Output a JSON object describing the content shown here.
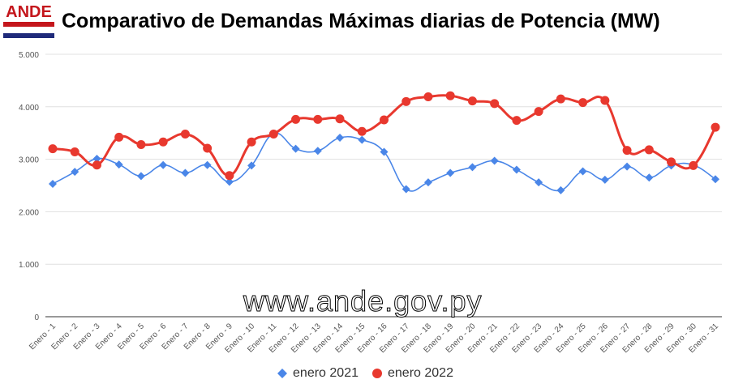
{
  "header": {
    "logo_text": "ANDE",
    "title": "Comparativo de Demandas Máximas diarias de Potencia (MW)"
  },
  "watermark": "www.ande.gov.py",
  "colors": {
    "logo_red": "#c4161c",
    "logo_blue": "#1f2a7a",
    "series_2021": "#4a86e8",
    "series_2022": "#e8382e",
    "grid": "#e0e0e0",
    "axis_text": "#555555"
  },
  "chart_data": {
    "type": "line",
    "categories": [
      "Enero - 1",
      "Enero - 2",
      "Enero - 3",
      "Enero - 4",
      "Enero - 5",
      "Enero - 6",
      "Enero - 7",
      "Enero - 8",
      "Enero - 9",
      "Enero - 10",
      "Enero - 11",
      "Enero - 12",
      "Enero - 13",
      "Enero - 14",
      "Enero - 15",
      "Enero - 16",
      "Enero - 17",
      "Enero - 18",
      "Enero - 19",
      "Enero - 20",
      "Enero - 21",
      "Enero - 22",
      "Enero - 23",
      "Enero - 24",
      "Enero - 25",
      "Enero - 26",
      "Enero - 27",
      "Enero - 28",
      "Enero - 29",
      "Enero - 30",
      "Enero - 31"
    ],
    "series": [
      {
        "name": "enero 2021",
        "marker": "diamond",
        "color": "#4a86e8",
        "values": [
          2530,
          2760,
          3010,
          2900,
          2680,
          2890,
          2740,
          2890,
          2570,
          2880,
          3490,
          3200,
          3160,
          3410,
          3370,
          3140,
          2430,
          2560,
          2740,
          2850,
          2970,
          2800,
          2560,
          2410,
          2770,
          2610,
          2860,
          2650,
          2880,
          2890,
          2620
        ]
      },
      {
        "name": "enero 2022",
        "marker": "circle",
        "color": "#e8382e",
        "values": [
          3200,
          3140,
          2890,
          3420,
          3280,
          3330,
          3480,
          3210,
          2690,
          3330,
          3480,
          3760,
          3760,
          3770,
          3530,
          3750,
          4100,
          4190,
          4210,
          4110,
          4060,
          3740,
          3910,
          4150,
          4080,
          4120,
          3170,
          3180,
          2950,
          2880,
          3610
        ]
      }
    ],
    "y_ticks": [
      "0",
      "1.000",
      "2.000",
      "3.000",
      "4.000",
      "5.000"
    ],
    "ylim": [
      0,
      5000
    ],
    "grid": "horizontal",
    "legend_position": "bottom"
  }
}
